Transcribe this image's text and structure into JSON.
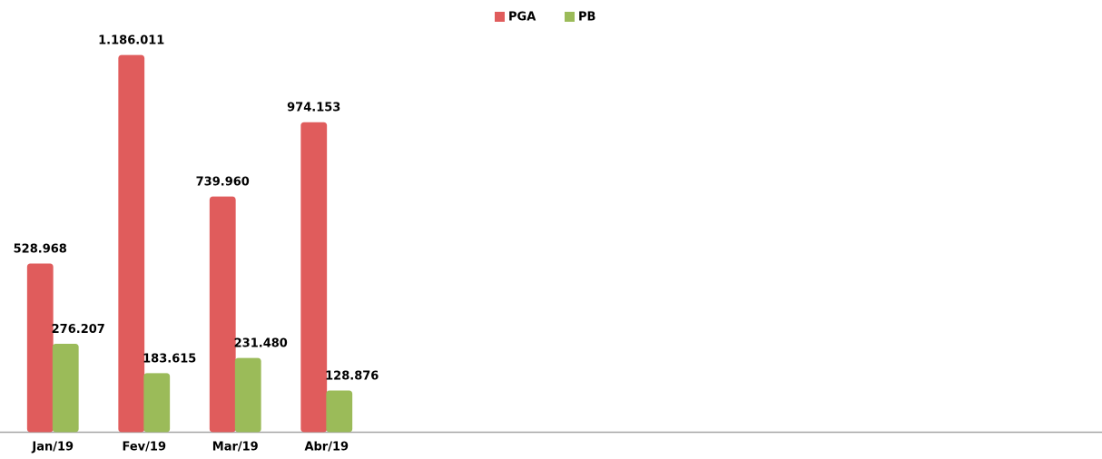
{
  "chart_data": {
    "type": "bar",
    "categories": [
      "Jan/19",
      "Fev/19",
      "Mar/19",
      "Abr/19",
      null,
      null,
      null,
      null,
      null,
      null,
      null,
      null
    ],
    "series": [
      {
        "name": "PGA",
        "color": "#e05c5c",
        "values": [
          528968,
          1186011,
          739960,
          974153,
          null,
          null,
          null,
          null,
          null,
          null,
          null,
          null
        ],
        "value_labels": [
          "528.968",
          "1.186.011",
          "739.960",
          "974.153",
          null,
          null,
          null,
          null,
          null,
          null,
          null,
          null
        ]
      },
      {
        "name": "PB",
        "color": "#9bbb59",
        "values": [
          276207,
          183615,
          231480,
          128876,
          null,
          null,
          null,
          null,
          null,
          null,
          null,
          null
        ],
        "value_labels": [
          "276.207",
          "183.615",
          "231.480",
          "128.876",
          null,
          null,
          null,
          null,
          null,
          null,
          null,
          null
        ]
      }
    ],
    "legend": "top"
  }
}
